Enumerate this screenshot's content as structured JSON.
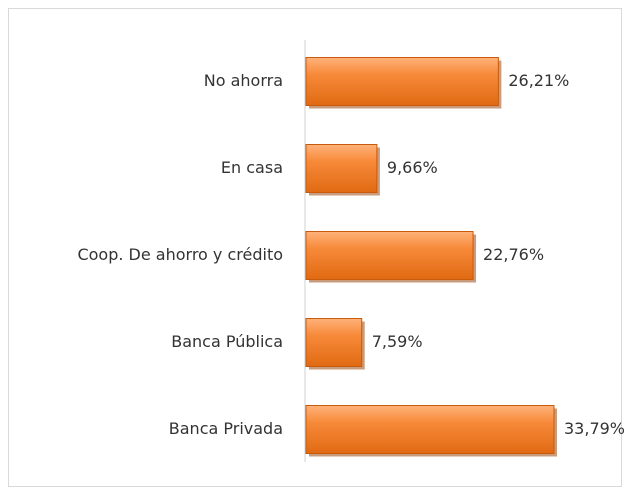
{
  "chart_data": {
    "type": "bar",
    "orientation": "horizontal",
    "categories": [
      "No ahorra",
      "En casa",
      "Coop. De ahorro y crédito",
      "Banca Pública",
      "Banca Privada"
    ],
    "values": [
      26.21,
      9.66,
      22.76,
      7.59,
      33.79
    ],
    "value_labels": [
      "26,21%",
      "9,66%",
      "22,76%",
      "7,59%",
      "33,79%"
    ],
    "color": "#f58025"
  }
}
